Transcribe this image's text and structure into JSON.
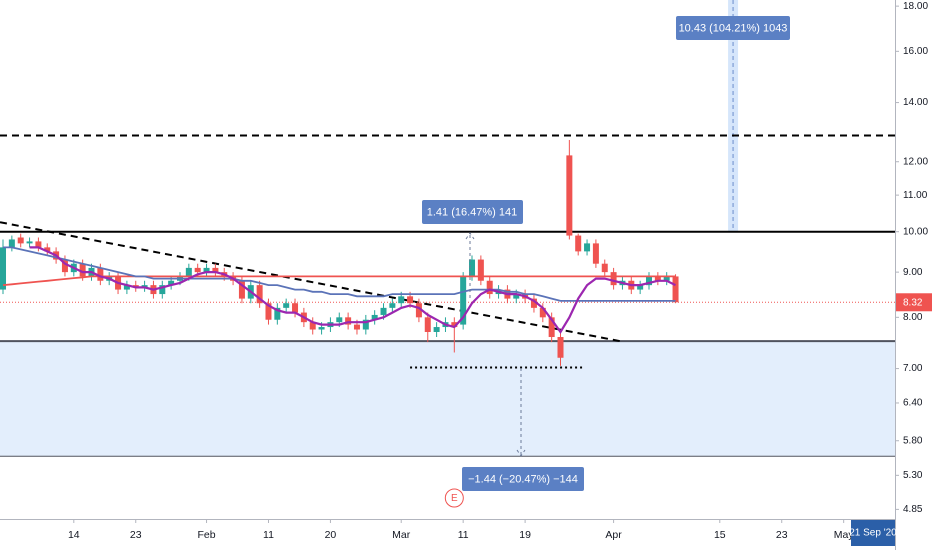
{
  "chart_data": {
    "type": "candlestick",
    "log_scale": true,
    "colors": {
      "up": "#26a69a",
      "down": "#ef5350"
    },
    "categories": [
      null,
      null,
      null,
      null,
      null,
      null,
      null,
      null,
      null,
      null,
      null,
      null,
      null,
      null,
      null,
      null,
      null,
      null,
      null,
      null,
      null,
      null,
      null,
      null,
      null,
      null,
      null,
      null,
      null,
      null,
      null,
      null,
      null,
      null,
      null,
      null,
      null,
      null,
      null,
      null,
      null,
      null,
      null,
      null,
      null,
      null,
      null,
      null,
      null,
      null,
      null,
      null,
      null,
      null,
      null,
      null,
      null,
      null,
      null,
      null,
      null,
      null,
      null,
      null,
      null,
      null,
      null,
      null,
      null,
      null,
      null,
      null,
      null,
      null,
      null,
      null,
      null
    ],
    "open": [
      8.6,
      9.6,
      9.85,
      9.7,
      9.75,
      9.6,
      9.5,
      9.3,
      9.0,
      9.2,
      8.9,
      9.1,
      8.8,
      8.9,
      8.6,
      8.7,
      8.65,
      8.7,
      8.5,
      8.7,
      8.8,
      8.9,
      9.1,
      9.0,
      9.1,
      9.0,
      8.9,
      8.8,
      8.4,
      8.7,
      8.3,
      7.95,
      8.2,
      8.3,
      8.1,
      7.9,
      7.75,
      7.8,
      7.9,
      8.0,
      7.85,
      7.75,
      7.95,
      8.05,
      8.2,
      8.3,
      8.45,
      8.3,
      8.0,
      7.7,
      7.8,
      7.9,
      7.85,
      8.9,
      9.3,
      8.8,
      8.5,
      8.6,
      8.4,
      8.5,
      8.4,
      8.2,
      8.0,
      7.6,
      12.2,
      9.9,
      9.5,
      9.7,
      9.2,
      9.0,
      8.7,
      8.8,
      8.6,
      8.7,
      8.9,
      8.8,
      8.9
    ],
    "high": [
      9.8,
      9.9,
      9.95,
      9.85,
      9.85,
      9.7,
      9.6,
      9.4,
      9.3,
      9.3,
      9.2,
      9.2,
      9.0,
      9.0,
      8.8,
      8.8,
      8.8,
      8.8,
      8.8,
      8.9,
      9.0,
      9.2,
      9.2,
      9.2,
      9.2,
      9.1,
      9.0,
      8.9,
      8.8,
      8.8,
      8.4,
      8.3,
      8.4,
      8.4,
      8.2,
      8.0,
      7.9,
      8.0,
      8.1,
      8.1,
      7.95,
      8.05,
      8.15,
      8.3,
      8.4,
      8.55,
      8.55,
      8.4,
      8.1,
      7.9,
      8.0,
      8.0,
      9.0,
      9.4,
      9.4,
      8.9,
      8.7,
      8.7,
      8.6,
      8.6,
      8.5,
      8.3,
      8.1,
      7.7,
      12.7,
      9.95,
      9.8,
      9.8,
      9.3,
      9.1,
      8.9,
      8.9,
      8.8,
      9.0,
      9.0,
      9.0,
      8.95
    ],
    "low": [
      8.5,
      9.5,
      9.6,
      9.6,
      9.5,
      9.4,
      9.2,
      8.9,
      8.9,
      8.8,
      8.8,
      8.7,
      8.7,
      8.5,
      8.5,
      8.55,
      8.55,
      8.4,
      8.4,
      8.6,
      8.7,
      8.8,
      8.9,
      8.9,
      8.9,
      8.8,
      8.7,
      8.3,
      8.3,
      8.2,
      7.85,
      7.85,
      8.1,
      8.0,
      7.8,
      7.65,
      7.65,
      7.7,
      7.8,
      7.75,
      7.65,
      7.65,
      7.85,
      7.95,
      8.1,
      8.2,
      8.2,
      7.9,
      7.5,
      7.6,
      7.7,
      7.3,
      7.75,
      8.8,
      8.7,
      8.4,
      8.4,
      8.3,
      8.3,
      8.3,
      8.1,
      7.9,
      7.5,
      7.05,
      9.8,
      9.4,
      9.4,
      9.1,
      8.9,
      8.6,
      8.6,
      8.5,
      8.5,
      8.6,
      8.7,
      8.7,
      8.3
    ],
    "close": [
      9.6,
      9.8,
      9.7,
      9.75,
      9.6,
      9.5,
      9.3,
      9.0,
      9.2,
      8.9,
      9.1,
      8.8,
      8.9,
      8.6,
      8.7,
      8.65,
      8.7,
      8.5,
      8.7,
      8.8,
      8.9,
      9.1,
      9.0,
      9.1,
      9.0,
      8.9,
      8.8,
      8.4,
      8.7,
      8.3,
      7.95,
      8.2,
      8.3,
      8.1,
      7.9,
      7.75,
      7.8,
      7.9,
      8.0,
      7.85,
      7.75,
      7.95,
      8.05,
      8.2,
      8.3,
      8.45,
      8.3,
      8.0,
      7.7,
      7.8,
      7.9,
      7.8,
      8.9,
      9.3,
      8.8,
      8.5,
      8.6,
      8.4,
      8.5,
      8.4,
      8.2,
      8.0,
      7.6,
      7.2,
      9.9,
      9.5,
      9.7,
      9.2,
      9.0,
      8.7,
      8.8,
      8.6,
      8.7,
      8.9,
      8.8,
      8.9,
      8.32
    ],
    "series": [
      {
        "color": "#ef5350",
        "values": [
          8.7,
          8.72,
          8.74,
          8.76,
          8.78,
          8.8,
          8.82,
          8.84,
          8.86,
          8.88,
          8.9,
          8.9,
          8.9,
          8.9,
          8.9,
          8.9,
          8.9,
          8.9,
          8.9,
          8.9,
          8.9,
          8.9,
          8.9,
          8.9,
          8.9,
          8.9,
          8.9,
          8.9,
          8.9,
          8.9,
          8.9,
          8.9,
          8.9,
          8.9,
          8.9,
          8.9,
          8.9,
          8.9,
          8.9,
          8.9,
          8.9,
          8.9,
          8.9,
          8.9,
          8.9,
          8.9,
          8.9,
          8.9,
          8.9,
          8.9,
          8.9,
          8.9,
          8.9,
          8.9,
          8.9,
          8.9,
          8.9,
          8.9,
          8.9,
          8.9,
          8.9,
          8.9,
          8.9,
          8.9,
          8.9,
          8.9,
          8.9,
          8.9,
          8.9,
          8.9,
          8.9,
          8.9,
          8.9,
          8.9,
          8.9,
          8.9,
          8.9
        ]
      },
      {
        "color": "#5b73b8",
        "values": [
          9.6,
          9.6,
          9.55,
          9.5,
          9.45,
          9.4,
          9.35,
          9.3,
          9.25,
          9.2,
          9.15,
          9.1,
          9.05,
          9.0,
          8.95,
          8.9,
          8.9,
          8.85,
          8.85,
          8.85,
          8.85,
          8.85,
          8.85,
          8.85,
          8.85,
          8.85,
          8.85,
          8.8,
          8.8,
          8.75,
          8.7,
          8.7,
          8.65,
          8.6,
          8.6,
          8.55,
          8.55,
          8.5,
          8.5,
          8.5,
          8.45,
          8.45,
          8.45,
          8.45,
          8.5,
          8.5,
          8.5,
          8.5,
          8.5,
          8.5,
          8.5,
          8.5,
          8.55,
          8.6,
          8.6,
          8.6,
          8.6,
          8.55,
          8.55,
          8.5,
          8.5,
          8.45,
          8.4,
          8.35,
          8.35,
          8.35,
          8.35,
          8.35,
          8.35,
          8.35,
          8.35,
          8.35,
          8.35,
          8.35,
          8.35,
          8.35,
          8.35
        ]
      },
      {
        "color": "#9c27b0",
        "values": [
          null,
          null,
          null,
          9.6,
          9.6,
          9.5,
          9.4,
          9.2,
          9.1,
          9.0,
          9.0,
          8.9,
          8.85,
          8.75,
          8.7,
          8.65,
          8.65,
          8.6,
          8.65,
          8.7,
          8.75,
          8.85,
          8.95,
          9.0,
          9.0,
          8.95,
          8.85,
          8.7,
          8.55,
          8.4,
          8.25,
          8.15,
          8.1,
          8.1,
          8.0,
          7.9,
          7.85,
          7.85,
          7.85,
          7.9,
          7.9,
          7.9,
          7.95,
          8.0,
          8.1,
          8.2,
          8.25,
          8.2,
          8.05,
          7.95,
          7.85,
          7.8,
          8.0,
          8.3,
          8.5,
          8.6,
          8.55,
          8.5,
          8.5,
          8.45,
          8.35,
          8.2,
          7.95,
          7.7,
          8.0,
          8.4,
          8.7,
          8.85,
          8.85,
          8.8,
          8.75,
          8.7,
          8.7,
          8.75,
          8.8,
          8.8,
          8.7
        ]
      }
    ],
    "levels": [
      {
        "value": 12.85,
        "style": "dashed",
        "color": "#000000"
      },
      {
        "value": 10.0,
        "style": "solid",
        "color": "#000000"
      },
      {
        "value": 7.52,
        "style": "solid",
        "color": "#50535e"
      }
    ],
    "zone": {
      "ylim": [
        5.57,
        7.52
      ],
      "color": "#e3eefc"
    },
    "trendline": {
      "x": [
        -0.34,
        70
      ],
      "y": [
        10.25,
        7.51
      ]
    },
    "dotted_level": {
      "value": 7.02,
      "x": [
        46,
        65.5
      ]
    },
    "projection_band": {
      "x": 82.5,
      "ylim": [
        10.0,
        18.29
      ]
    },
    "annotations": [
      "10.43 (104.21%) 1043",
      "1.41 (16.47%) 141",
      "−1.44 (−20.47%) −144"
    ],
    "event_marker": {
      "label": "E",
      "x": 51
    },
    "cursor_date": "21 Sep '20",
    "xlim": [
      -0.34,
      100.8
    ],
    "xticks": [
      {
        "value": 8,
        "label": "14"
      },
      {
        "value": 15,
        "label": "23"
      },
      {
        "value": 23,
        "label": "Feb"
      },
      {
        "value": 30,
        "label": "11"
      },
      {
        "value": 37,
        "label": "20"
      },
      {
        "value": 45,
        "label": "Mar"
      },
      {
        "value": 52,
        "label": "11"
      },
      {
        "value": 59,
        "label": "19"
      },
      {
        "value": 69,
        "label": "Apr"
      },
      {
        "value": 81,
        "label": "15"
      },
      {
        "value": 88,
        "label": "23"
      },
      {
        "value": 95,
        "label": "May"
      }
    ],
    "ylim": [
      4.73,
      18.29
    ],
    "yticks": [
      {
        "value": 18,
        "label": "18.00"
      },
      {
        "value": 16,
        "label": "16.00"
      },
      {
        "value": 14,
        "label": "14.00"
      },
      {
        "value": 12,
        "label": "12.00"
      },
      {
        "value": 11,
        "label": "11.00"
      },
      {
        "value": 10,
        "label": "10.00"
      },
      {
        "value": 9,
        "label": "9.00"
      },
      {
        "value": 8,
        "label": "8.00"
      },
      {
        "value": 7,
        "label": "7.00"
      },
      {
        "value": 6.4,
        "label": "6.40"
      },
      {
        "value": 5.8,
        "label": "5.80"
      },
      {
        "value": 5.3,
        "label": "5.30"
      },
      {
        "value": 4.85,
        "label": "4.85"
      }
    ]
  }
}
